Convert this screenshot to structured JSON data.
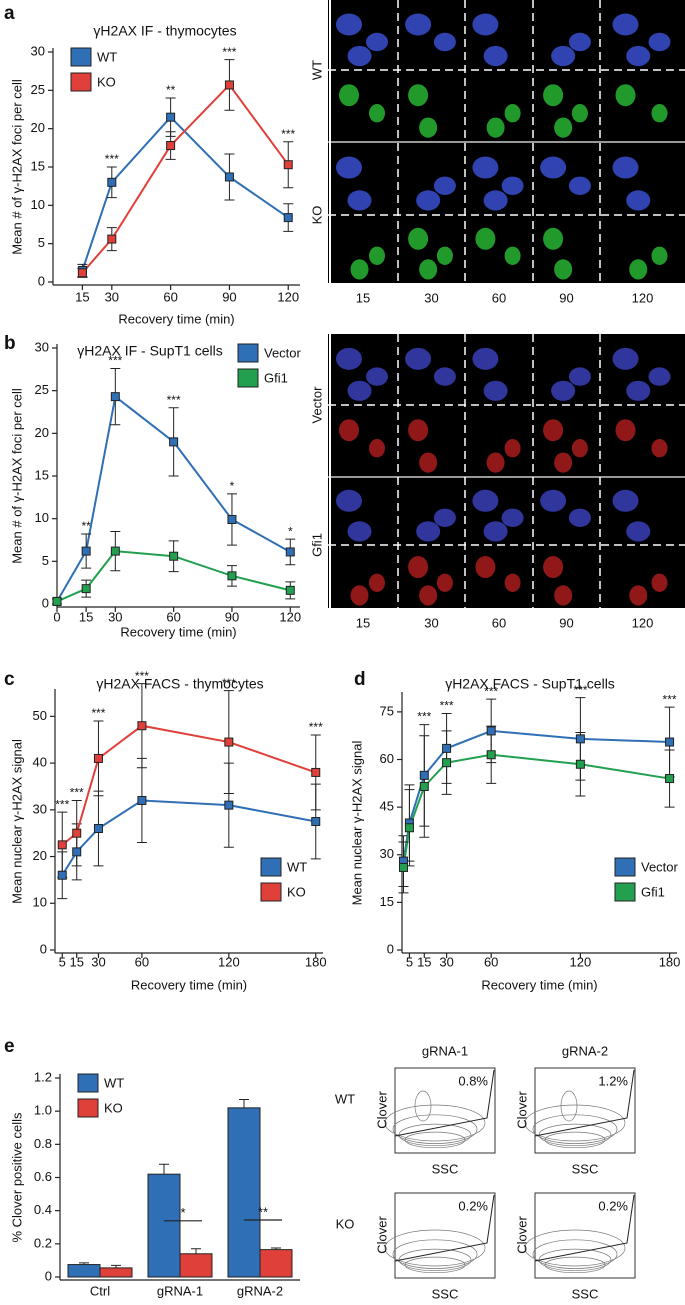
{
  "chart_data": [
    {
      "type": "line",
      "title": "γH2AX IF - thymocytes",
      "x_label": "Recovery time (min)",
      "y_label": "Mean # of γ-H2AX foci per cell",
      "x": [
        15,
        30,
        60,
        90,
        120
      ],
      "xlim": [
        0,
        126
      ],
      "xticks": [
        15,
        30,
        60,
        90,
        120
      ],
      "ylim": [
        0,
        30
      ],
      "yticks": [
        0,
        5,
        10,
        15,
        20,
        25,
        30
      ],
      "legend": "upper left",
      "series": [
        {
          "name": "WT",
          "color": "#2f6fb5",
          "values": [
            1.5,
            13,
            21.5,
            13.7,
            8.4
          ],
          "errors": [
            0.8,
            2,
            2.5,
            3,
            1.8
          ]
        },
        {
          "name": "KO",
          "color": "#e0403a",
          "values": [
            1.2,
            5.6,
            17.8,
            25.7,
            15.3
          ],
          "errors": [
            0.6,
            1.5,
            1.8,
            3.3,
            3
          ]
        }
      ],
      "significance": [
        null,
        "***",
        "**",
        "***",
        "***"
      ]
    },
    {
      "type": "line",
      "title": "γH2AX IF - SupT1 cells",
      "x_label": "Recovery time (min)",
      "y_label": "Mean # of γ-H2AX foci per cell",
      "x": [
        0,
        15,
        30,
        60,
        90,
        120
      ],
      "xlim": [
        0,
        125
      ],
      "xticks": [
        0,
        15,
        30,
        60,
        90,
        120
      ],
      "ylim": [
        0,
        30
      ],
      "yticks": [
        0,
        5,
        10,
        15,
        20,
        25,
        30
      ],
      "legend": "upper right",
      "series": [
        {
          "name": "Vector",
          "color": "#2f6fb5",
          "values": [
            0.3,
            6.2,
            24.3,
            19,
            9.9,
            6.1
          ],
          "errors": [
            0.3,
            2,
            3.3,
            4,
            3,
            1.5
          ]
        },
        {
          "name": "Gfi1",
          "color": "#22a050",
          "values": [
            0.3,
            1.8,
            6.2,
            5.6,
            3.3,
            1.6
          ],
          "errors": [
            0.3,
            1,
            2.3,
            1.8,
            1.2,
            1
          ]
        }
      ],
      "significance": [
        null,
        "**",
        "***",
        "***",
        "*",
        "*"
      ]
    },
    {
      "type": "line",
      "title": "γH2AX FACS - thymocytes",
      "x_label": "Recovery time (min)",
      "y_label": "Mean nuclear γ-H2AX signal",
      "x": [
        5,
        15,
        30,
        60,
        120,
        180
      ],
      "xlim": [
        0,
        185
      ],
      "xticks": [
        5,
        15,
        30,
        60,
        120,
        180
      ],
      "ylim": [
        0,
        55
      ],
      "yticks": [
        0,
        10,
        20,
        30,
        40,
        50
      ],
      "legend": "lower right",
      "series": [
        {
          "name": "WT",
          "color": "#2f6fb5",
          "values": [
            16,
            21,
            26,
            32,
            31,
            27.5
          ],
          "errors": [
            5,
            6,
            8,
            9,
            9,
            8
          ]
        },
        {
          "name": "KO",
          "color": "#e0403a",
          "values": [
            22.5,
            25,
            41,
            48,
            44.5,
            38
          ],
          "errors": [
            7,
            7,
            8,
            9,
            11,
            8
          ]
        }
      ],
      "significance": [
        "***",
        "***",
        "***",
        "***",
        "***",
        "***"
      ]
    },
    {
      "type": "line",
      "title": "γH2AX FACS - SupT1 cells",
      "x_label": "Recovery time (min)",
      "y_label": "Mean nuclear γ-H2AX signal",
      "x": [
        1,
        5,
        15,
        30,
        60,
        120,
        180
      ],
      "xlim": [
        0,
        185
      ],
      "xticks": [
        5,
        15,
        30,
        60,
        120,
        180
      ],
      "ylim": [
        0,
        80
      ],
      "yticks": [
        0,
        15,
        30,
        45,
        60,
        75
      ],
      "legend": "lower right",
      "series": [
        {
          "name": "Vector",
          "color": "#2f6fb5",
          "values": [
            28,
            40,
            55,
            63.5,
            69,
            66.5,
            65.5
          ],
          "errors": [
            8,
            12,
            16,
            11,
            10,
            13,
            11
          ]
        },
        {
          "name": "Gfi1",
          "color": "#22a050",
          "values": [
            26,
            38.5,
            51.5,
            59,
            61.5,
            58.5,
            54
          ],
          "errors": [
            8,
            12,
            16,
            10,
            9,
            10,
            9
          ]
        }
      ],
      "significance": [
        null,
        null,
        "***",
        "***",
        "***",
        "***",
        "***"
      ]
    },
    {
      "type": "bar",
      "y_label": "% Clover positive cells",
      "categories": [
        "Ctrl",
        "gRNA-1",
        "gRNA-2"
      ],
      "ylim": [
        0,
        1.2
      ],
      "yticks": [
        0,
        0.2,
        0.4,
        0.6,
        0.8,
        {
          "value": 1,
          "label": "1.0"
        },
        1.2
      ],
      "legend": "upper left",
      "series": [
        {
          "name": "WT",
          "color": "#2f6fb5",
          "values": [
            0.075,
            0.62,
            1.02
          ],
          "errors": [
            0.01,
            0.06,
            0.05
          ]
        },
        {
          "name": "KO",
          "color": "#e0403a",
          "values": [
            0.055,
            0.14,
            0.165
          ],
          "errors": [
            0.015,
            0.03,
            0.01
          ]
        }
      ],
      "significance": [
        null,
        "*",
        "**"
      ]
    }
  ],
  "figure": {
    "panel_labels": [
      "a",
      "b",
      "c",
      "d",
      "e"
    ],
    "image_a": {
      "rows": [
        "WT",
        "KO"
      ],
      "columns": [
        15,
        30,
        60,
        90,
        120
      ]
    },
    "image_b": {
      "rows": [
        "Vector",
        "Gfi1"
      ],
      "columns": [
        15,
        30,
        60,
        90,
        120
      ]
    },
    "flow": {
      "columns": [
        "gRNA-1",
        "gRNA-2"
      ],
      "rows": [
        "WT",
        "KO"
      ],
      "percent_labels": [
        [
          "0.8%",
          "1.2%"
        ],
        [
          "0.2%",
          "0.2%"
        ]
      ],
      "x_label": "SSC",
      "y_label": "Clover"
    }
  }
}
